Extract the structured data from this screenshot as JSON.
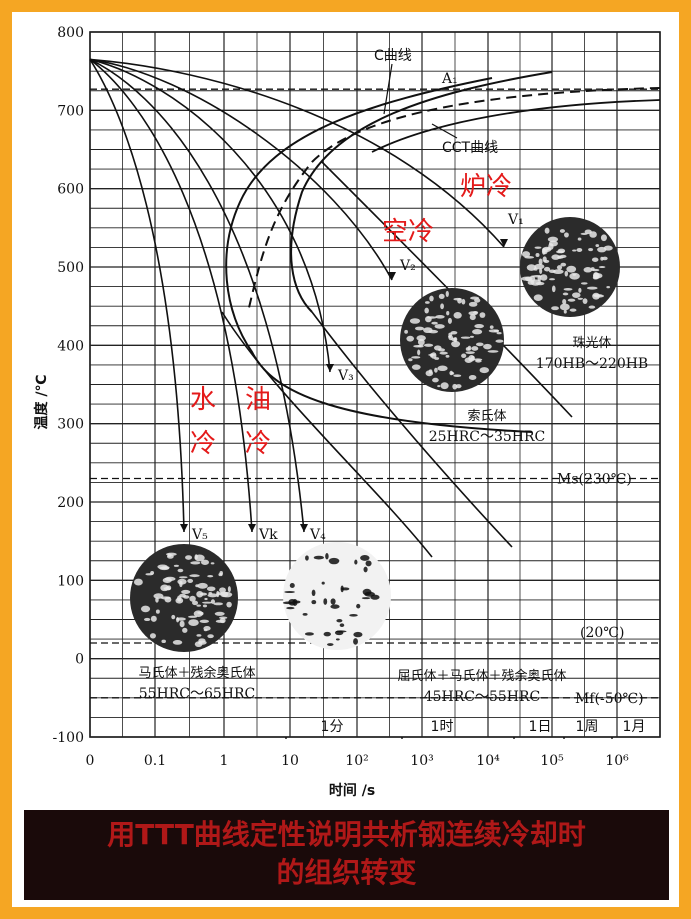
{
  "chart_data": {
    "type": "line",
    "title": "",
    "xlabel": "时间 /s",
    "ylabel": "温度 /℃",
    "x_scale": "log",
    "xlim": [
      0,
      1000000
    ],
    "ylim": [
      -100,
      800
    ],
    "x_ticks": [
      "0",
      "0.1",
      "1",
      "10",
      "10²",
      "10³",
      "10⁴",
      "10⁵",
      "10⁶"
    ],
    "y_ticks": [
      800,
      700,
      600,
      500,
      400,
      300,
      200,
      100,
      0,
      -100
    ],
    "time_labels": [
      "1分",
      "1时",
      "1日",
      "1周",
      "1月"
    ],
    "reference_lines": [
      {
        "label": "A₁",
        "value": 727
      },
      {
        "label": "Ms(230℃)",
        "value": 230
      },
      {
        "label": "(20℃)",
        "value": 20
      },
      {
        "label": "Mf(-50℃)",
        "value": -50
      }
    ],
    "series": [
      {
        "name": "V₁",
        "label": "炉冷"
      },
      {
        "name": "V₂",
        "label": "空冷"
      },
      {
        "name": "V₃",
        "label": ""
      },
      {
        "name": "V₄",
        "label": "油冷"
      },
      {
        "name": "Vk",
        "label": ""
      },
      {
        "name": "V₅",
        "label": "水冷"
      }
    ],
    "curve_labels": [
      "C曲线",
      "CCT曲线"
    ],
    "annotations": {
      "furnace": "炉冷",
      "air": "空冷",
      "water_1": "水",
      "water_2": "冷",
      "oil_1": "油",
      "oil_2": "冷"
    },
    "microstructures": [
      {
        "name": "珠光体",
        "hardness": "170HB～220HB"
      },
      {
        "name": "索氏体",
        "hardness": "25HRC～35HRC"
      },
      {
        "name": "屈氏体＋马氏体＋残余奥氏体",
        "hardness": "45HRC～55HRC"
      },
      {
        "name": "马氏体＋残余奥氏体",
        "hardness": "55HRC～65HRC"
      }
    ]
  },
  "caption": {
    "line1": "用TTT曲线定性说明共析钢连续冷却时",
    "line2": "的组织转变"
  },
  "colors": {
    "frame": "#f5a623",
    "annotation_red": "#e41a1a",
    "caption_bg": "#1a0a0a",
    "caption_text": "#b01818"
  }
}
